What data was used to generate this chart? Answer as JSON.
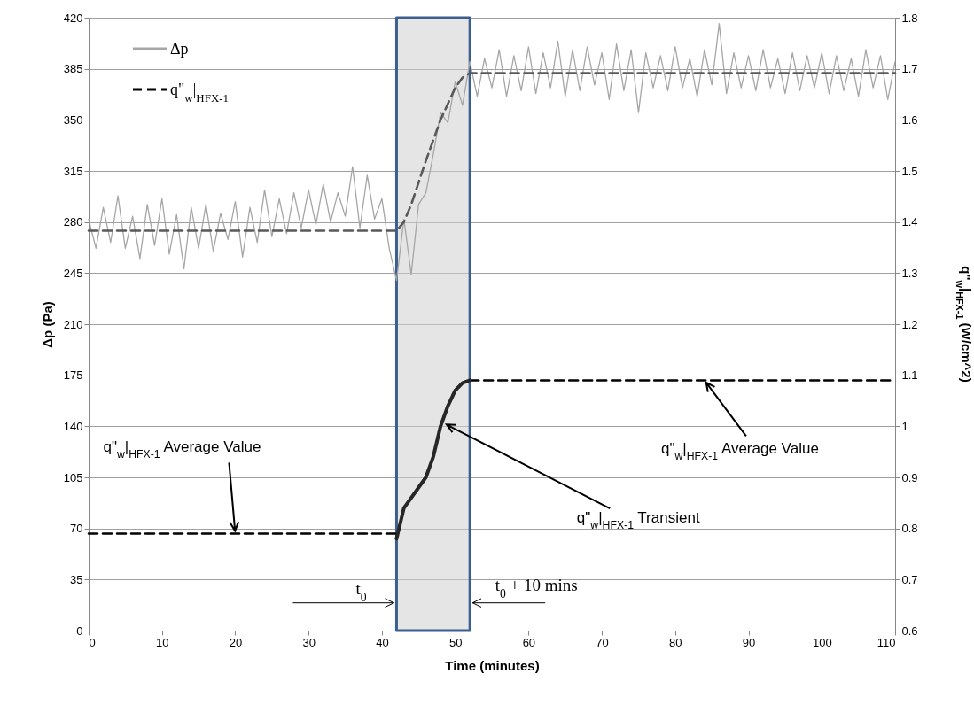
{
  "chart_data": {
    "type": "line",
    "xlabel": "Time (minutes)",
    "ylabel": "Δp (Pa)",
    "y2label": "q\"$_{w}$|$_{HFX-1}$ (W/cm^2)",
    "xlim": [
      0,
      110
    ],
    "xticks": [
      0,
      10,
      20,
      30,
      40,
      50,
      60,
      70,
      80,
      90,
      100,
      110
    ],
    "ylim": [
      0,
      420
    ],
    "yticks": [
      0,
      35,
      70,
      105,
      140,
      175,
      210,
      245,
      280,
      315,
      350,
      385,
      420
    ],
    "y2lim": [
      0.6,
      1.8
    ],
    "y2ticks": [
      0.6,
      0.7,
      0.8,
      0.9,
      1,
      1.1,
      1.2,
      1.3,
      1.4,
      1.5,
      1.6,
      1.7,
      1.8
    ],
    "grid": "y",
    "legend": "top left",
    "bands": [
      {
        "axis": "x",
        "from": 42,
        "to": 52,
        "color": "#cfcfcf"
      }
    ],
    "annotations": [
      {
        "text": "q\"$_{w}$|$_{HFX-1}$ Average Value",
        "x": 20,
        "y": 66.5
      },
      {
        "text": "q\"$_{w}$|$_{HFX-1}$ Average Value",
        "x": 84,
        "y": 171.5
      },
      {
        "text": "q\"$_{w}$|$_{HFX-1}$ Transient",
        "x": 48.5,
        "y": 142
      },
      {
        "text": "t$_{0}$",
        "x": 42,
        "y": 19
      },
      {
        "text": "t$_{0}$ + 10 mins",
        "x": 52,
        "y": 19
      }
    ],
    "series": [
      {
        "name": "Δp",
        "color": "#a6a6a6",
        "line_style": "solid",
        "x": [
          0,
          1,
          2,
          3,
          4,
          5,
          6,
          7,
          8,
          9,
          10,
          11,
          12,
          13,
          14,
          15,
          16,
          17,
          18,
          19,
          20,
          21,
          22,
          23,
          24,
          25,
          26,
          27,
          28,
          29,
          30,
          31,
          32,
          33,
          34,
          35,
          36,
          37,
          38,
          39,
          40,
          41,
          42,
          43,
          44,
          45,
          46,
          47,
          48,
          49,
          50,
          51,
          52,
          53,
          54,
          55,
          56,
          57,
          58,
          59,
          60,
          61,
          62,
          63,
          64,
          65,
          66,
          67,
          68,
          69,
          70,
          71,
          72,
          73,
          74,
          75,
          76,
          77,
          78,
          79,
          80,
          81,
          82,
          83,
          84,
          85,
          86,
          87,
          88,
          89,
          90,
          91,
          92,
          93,
          94,
          95,
          96,
          97,
          98,
          99,
          100,
          101,
          102,
          103,
          104,
          105,
          106,
          107,
          108,
          109,
          110
        ],
        "values": [
          282,
          262,
          290,
          266,
          298,
          262,
          284,
          255,
          292,
          264,
          296,
          258,
          285,
          248,
          290,
          262,
          292,
          260,
          286,
          268,
          294,
          256,
          290,
          266,
          302,
          270,
          296,
          272,
          300,
          276,
          302,
          278,
          306,
          280,
          300,
          284,
          318,
          276,
          312,
          282,
          296,
          262,
          240,
          282,
          244,
          292,
          300,
          326,
          355,
          348,
          376,
          360,
          390,
          366,
          392,
          372,
          398,
          366,
          394,
          370,
          400,
          368,
          396,
          372,
          404,
          366,
          398,
          370,
          400,
          374,
          396,
          364,
          402,
          370,
          398,
          355,
          396,
          372,
          394,
          370,
          400,
          372,
          392,
          366,
          398,
          374,
          416,
          368,
          396,
          372,
          394,
          370,
          398,
          372,
          392,
          368,
          396,
          370,
          394,
          372,
          396,
          368,
          394,
          370,
          392,
          366,
          398,
          372,
          394,
          364,
          390
        ]
      },
      {
        "color": "#595959",
        "line_style": "dashed",
        "x": [
          0,
          42,
          43,
          44,
          46,
          48,
          50,
          51,
          52,
          110
        ],
        "values": [
          274,
          274,
          280,
          292,
          322,
          350,
          372,
          379,
          382,
          382
        ]
      },
      {
        "name": "q\"$_{w}$|$_{HFX-1}$",
        "color": "#000000",
        "axis": "y2",
        "line_style": "dashed",
        "x": [
          0,
          42,
          47,
          52,
          110
        ],
        "values": [
          0.79,
          0.79,
          null,
          1.09,
          1.09
        ]
      },
      {
        "color": "#262626",
        "axis": "y2",
        "line_style": "solid",
        "x": [
          42,
          43,
          44,
          45,
          46,
          47,
          48,
          49,
          50,
          51,
          52
        ],
        "values": [
          0.78,
          0.84,
          0.86,
          0.88,
          0.9,
          0.94,
          1.0,
          1.04,
          1.07,
          1.085,
          1.09
        ]
      }
    ]
  }
}
